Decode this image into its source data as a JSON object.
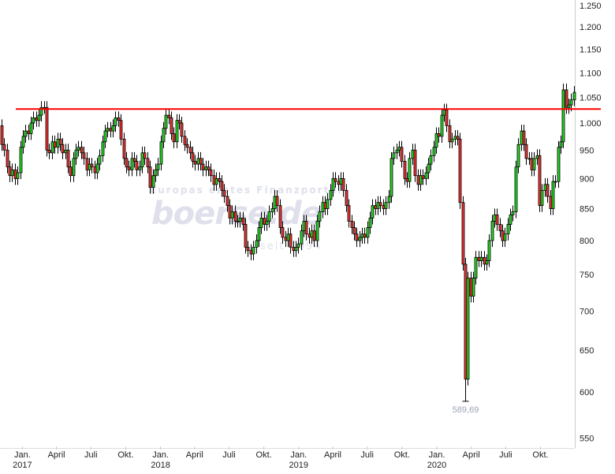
{
  "chart_data": {
    "type": "candlestick",
    "interval": "weekly",
    "y_scale": "log",
    "ylim": [
      530,
      1260
    ],
    "y_ticks": [
      "1.250",
      "1.200",
      "1.150",
      "1.100",
      "1.050",
      "1.000",
      "950",
      "900",
      "850",
      "800",
      "750",
      "700",
      "650",
      "600",
      "550"
    ],
    "y_tick_values": [
      1250,
      1200,
      1150,
      1100,
      1050,
      1000,
      950,
      900,
      850,
      800,
      750,
      700,
      650,
      600,
      550
    ],
    "x_ticks": [
      {
        "month": "Jan.",
        "year": "2017",
        "date": "2017-01"
      },
      {
        "month": "April",
        "year": "",
        "date": "2017-04"
      },
      {
        "month": "Juli",
        "year": "",
        "date": "2017-07"
      },
      {
        "month": "Okt.",
        "year": "",
        "date": "2017-10"
      },
      {
        "month": "Jan.",
        "year": "2018",
        "date": "2018-01"
      },
      {
        "month": "April",
        "year": "",
        "date": "2018-04"
      },
      {
        "month": "Juli",
        "year": "",
        "date": "2018-07"
      },
      {
        "month": "Okt.",
        "year": "",
        "date": "2018-10"
      },
      {
        "month": "Jan.",
        "year": "2019",
        "date": "2019-01"
      },
      {
        "month": "April",
        "year": "",
        "date": "2019-04"
      },
      {
        "month": "Juli",
        "year": "",
        "date": "2019-07"
      },
      {
        "month": "Okt.",
        "year": "",
        "date": "2019-10"
      },
      {
        "month": "Jan.",
        "year": "2020",
        "date": "2020-01"
      },
      {
        "month": "April",
        "year": "",
        "date": "2020-04"
      },
      {
        "month": "Juli",
        "year": "",
        "date": "2020-07"
      },
      {
        "month": "Okt.",
        "year": "",
        "date": "2020-10"
      }
    ],
    "first_open": 995,
    "close": [
      960,
      950,
      920,
      905,
      915,
      900,
      910,
      955,
      975,
      985,
      980,
      1000,
      1010,
      1005,
      1015,
      1030,
      1030,
      950,
      945,
      965,
      955,
      970,
      960,
      945,
      950,
      920,
      905,
      935,
      950,
      955,
      945,
      935,
      915,
      925,
      920,
      910,
      925,
      940,
      965,
      985,
      990,
      985,
      995,
      1010,
      1005,
      970,
      935,
      920,
      915,
      935,
      930,
      915,
      920,
      945,
      935,
      920,
      885,
      905,
      915,
      925,
      965,
      990,
      1015,
      1010,
      980,
      965,
      1005,
      1000,
      975,
      960,
      955,
      945,
      930,
      925,
      935,
      925,
      915,
      920,
      915,
      905,
      890,
      900,
      895,
      880,
      870,
      855,
      835,
      845,
      830,
      830,
      835,
      825,
      790,
      785,
      780,
      790,
      800,
      820,
      835,
      825,
      830,
      845,
      850,
      870,
      855,
      820,
      805,
      800,
      810,
      790,
      785,
      790,
      795,
      815,
      830,
      810,
      805,
      815,
      800,
      830,
      845,
      860,
      850,
      865,
      880,
      900,
      895,
      890,
      900,
      880,
      855,
      830,
      820,
      810,
      800,
      805,
      810,
      805,
      820,
      835,
      855,
      850,
      860,
      855,
      850,
      860,
      870,
      935,
      945,
      950,
      955,
      930,
      900,
      895,
      935,
      950,
      905,
      890,
      905,
      900,
      910,
      925,
      940,
      955,
      980,
      975,
      1015,
      1025,
      995,
      965,
      970,
      975,
      970,
      860,
      765,
      615,
      745,
      720,
      745,
      775,
      770,
      775,
      765,
      770,
      800,
      830,
      840,
      825,
      815,
      800,
      810,
      825,
      840,
      845,
      920,
      960,
      985,
      960,
      935,
      935,
      915,
      935,
      940,
      855,
      880,
      890,
      870,
      850,
      895,
      895,
      955,
      965,
      1065,
      1030,
      1035,
      1045,
      1060
    ],
    "colors": {
      "up": "#22dd22",
      "down": "#ee3333",
      "outline": "#000000",
      "resistance": "#ff0000"
    },
    "resistance_line": 1027,
    "annotations": [
      {
        "label": "589,69",
        "value": 589.69
      }
    ],
    "grid": false
  },
  "watermark": {
    "tagline": "Europas erstes Finanzportal",
    "brand": "boerse.de",
    "since": "seit 1994"
  }
}
